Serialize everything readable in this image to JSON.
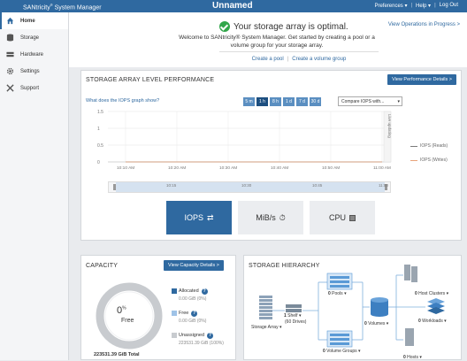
{
  "topbar": {
    "brand_prefix": "SANtricity",
    "brand_reg": "®",
    "brand_suffix": " System Manager",
    "app_name": "Unnamed",
    "preferences": "Preferences ▾",
    "help": "Help ▾",
    "logout": "Log Out",
    "sep": "|"
  },
  "sidebar": {
    "items": [
      {
        "label": "Home",
        "icon": "home-icon"
      },
      {
        "label": "Storage",
        "icon": "storage-icon"
      },
      {
        "label": "Hardware",
        "icon": "hardware-icon"
      },
      {
        "label": "Settings",
        "icon": "gear-icon"
      },
      {
        "label": "Support",
        "icon": "wrench-icon"
      }
    ]
  },
  "banner": {
    "status": "Your storage array is optimal.",
    "welcome": "Welcome to SANtricity® System Manager. Get started by creating a pool or a volume group for your storage array.",
    "view_ops": "View Operations in Progress >",
    "create_pool": "Create a pool",
    "link_sep": "|",
    "create_volume_group": "Create a volume group"
  },
  "performance": {
    "title": "STORAGE ARRAY LEVEL PERFORMANCE",
    "details_button": "View Performance Details >",
    "iops_link": "What does the IOPS graph show?",
    "time_buttons": [
      "5 m",
      "1 h",
      "8 h",
      "1 d",
      "7 d",
      "30 d"
    ],
    "selected_time": "1 h",
    "compare_value": "Compare IOPS with...",
    "live_label": "Live updating",
    "reads_label": "IOPS (Reads)",
    "writes_label": "IOPS (Writes)",
    "metric_buttons": [
      {
        "label": "IOPS",
        "icon": "swap-arrows-icon",
        "active": true
      },
      {
        "label": "MiB/s",
        "icon": "stopwatch-icon",
        "active": false
      },
      {
        "label": "CPU",
        "icon": "cpu-icon",
        "active": false
      }
    ],
    "navigator_ticks": [
      "10:15",
      "10:30",
      "10:45",
      "11:00"
    ]
  },
  "chart_data": {
    "type": "line",
    "y_ticks": [
      "1.5",
      "1",
      "0.5",
      "0"
    ],
    "ylim": [
      0,
      1.5
    ],
    "x_ticks": [
      "10:10 AM",
      "10:20 AM",
      "10:30 AM",
      "10:40 AM",
      "10:50 AM",
      "11:00 AM"
    ],
    "series": [
      {
        "name": "IOPS (Reads)",
        "color": "#7a7a7a",
        "values": [
          0,
          0,
          0,
          0,
          0,
          0
        ]
      },
      {
        "name": "IOPS (Writes)",
        "color": "#e8a37a",
        "values": [
          0,
          0,
          0,
          0,
          0,
          0
        ]
      }
    ],
    "grid": true,
    "legend": "right"
  },
  "capacity": {
    "title": "CAPACITY",
    "details_button": "View Capacity Details >",
    "percent": "0",
    "percent_sign": "%",
    "free_label": "Free",
    "total": "223531.39 GiB Total",
    "allocated_label": "Allocated",
    "allocated_value": "0.00 GiB (0%)",
    "free_label2": "Free",
    "free_value": "0.00 GiB (0%)",
    "unassigned_label": "Unassigned",
    "unassigned_value": "223531.39 GiB (100%)",
    "help": "?",
    "colors": {
      "allocated": "#2f69a0",
      "free": "#9fc3e7",
      "unassigned": "#c8cbcf"
    }
  },
  "hierarchy": {
    "title": "STORAGE HIERARCHY",
    "storage_array": "Storage Array ▾",
    "shelf_count": "1",
    "shelf_label": " Shelf ▾",
    "drives": "(60 Drives)",
    "pools_count": "0",
    "pools_label": " Pools ▾",
    "volume_groups_count": "0",
    "volume_groups_label": " Volume Groups ▾",
    "volumes_count": "0",
    "volumes_label": " Volumes ▾",
    "host_clusters_count": "0",
    "host_clusters_label": " Host Clusters ▾",
    "workloads_count": "0",
    "workloads_label": " Workloads ▾",
    "hosts_count": "0",
    "hosts_label": " Hosts ▾"
  }
}
